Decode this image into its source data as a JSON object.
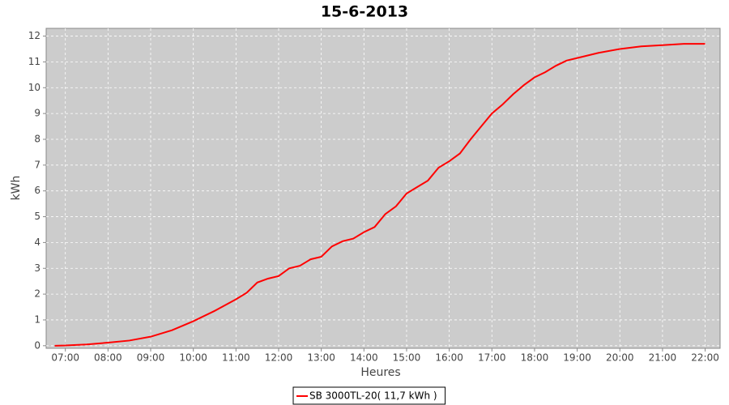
{
  "chart_data": {
    "type": "line",
    "title": "15-6-2013",
    "x_label": "Heures",
    "y_label": "kWh",
    "x": [
      6.75,
      7.0,
      7.5,
      8.0,
      8.5,
      9.0,
      9.5,
      10.0,
      10.5,
      11.0,
      11.25,
      11.5,
      11.75,
      12.0,
      12.25,
      12.5,
      12.75,
      13.0,
      13.25,
      13.5,
      13.75,
      14.0,
      14.25,
      14.5,
      14.75,
      15.0,
      15.25,
      15.5,
      15.75,
      16.0,
      16.25,
      16.5,
      16.75,
      17.0,
      17.25,
      17.5,
      17.75,
      18.0,
      18.25,
      18.5,
      18.75,
      19.0,
      19.5,
      20.0,
      20.5,
      21.0,
      21.5,
      22.0
    ],
    "series": [
      {
        "name": "SB 3000TL-20( 11,7 kWh )",
        "color": "#ff0000",
        "values": [
          0,
          0.01,
          0.05,
          0.12,
          0.2,
          0.35,
          0.6,
          0.95,
          1.35,
          1.8,
          2.05,
          2.45,
          2.6,
          2.7,
          3.0,
          3.1,
          3.35,
          3.45,
          3.85,
          4.05,
          4.15,
          4.4,
          4.6,
          5.1,
          5.4,
          5.9,
          6.15,
          6.4,
          6.9,
          7.15,
          7.45,
          8.0,
          8.5,
          9.0,
          9.35,
          9.75,
          10.1,
          10.4,
          10.6,
          10.85,
          11.05,
          11.15,
          11.35,
          11.5,
          11.6,
          11.65,
          11.7,
          11.7
        ]
      }
    ],
    "xlim": [
      6.55,
      22.35
    ],
    "ylim": [
      -0.1,
      12.3
    ],
    "xticks": [
      {
        "value": 7,
        "label": "07:00"
      },
      {
        "value": 8,
        "label": "08:00"
      },
      {
        "value": 9,
        "label": "09:00"
      },
      {
        "value": 10,
        "label": "10:00"
      },
      {
        "value": 11,
        "label": "11:00"
      },
      {
        "value": 12,
        "label": "12:00"
      },
      {
        "value": 13,
        "label": "13:00"
      },
      {
        "value": 14,
        "label": "14:00"
      },
      {
        "value": 15,
        "label": "15:00"
      },
      {
        "value": 16,
        "label": "16:00"
      },
      {
        "value": 17,
        "label": "17:00"
      },
      {
        "value": 18,
        "label": "18:00"
      },
      {
        "value": 19,
        "label": "19:00"
      },
      {
        "value": 20,
        "label": "20:00"
      },
      {
        "value": 21,
        "label": "21:00"
      },
      {
        "value": 22,
        "label": "22:00"
      }
    ],
    "yticks": [
      0,
      1,
      2,
      3,
      4,
      5,
      6,
      7,
      8,
      9,
      10,
      11,
      12
    ],
    "grid": true,
    "legend": "bottom"
  }
}
